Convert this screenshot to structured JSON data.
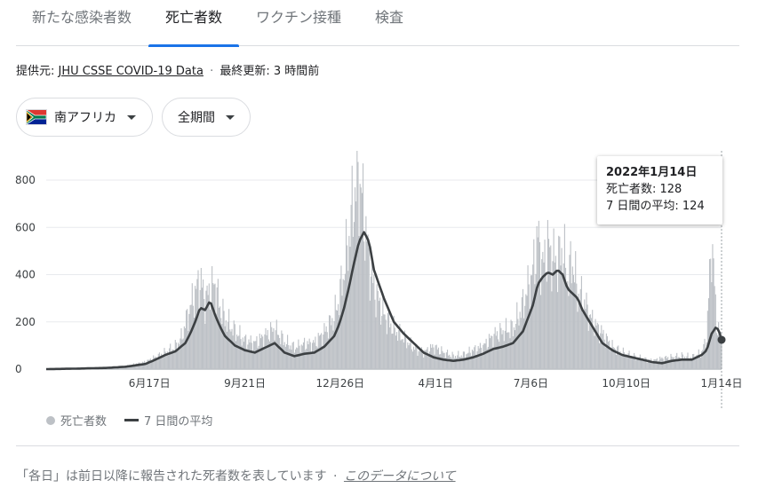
{
  "tabs": [
    "新たな感染者数",
    "死亡者数",
    "ワクチン接種",
    "検査"
  ],
  "active_tab_index": 1,
  "source": {
    "prefix": "提供元:",
    "link": "JHU CSSE COVID-19 Data",
    "separator": "·",
    "updated": "最終更新: 3 時間前"
  },
  "filters": {
    "country": "南アフリカ",
    "period": "全期間"
  },
  "tooltip": {
    "date": "2022年1月14日",
    "deaths": "死亡者数: 128",
    "avg": "7 日間の平均: 124"
  },
  "legend": {
    "deaths": "死亡者数",
    "avg": "7 日間の平均"
  },
  "footnote": {
    "text": "「各日」は前日以降に報告された死者数を表しています",
    "separator": "·",
    "link": "このデータについて"
  },
  "colors": {
    "bar": "#bdc1c6",
    "line": "#3c4043",
    "accent": "#1a73e8"
  },
  "chart_data": {
    "type": "bar",
    "title": "",
    "xlabel": "",
    "ylabel": "",
    "ylim": [
      0,
      850
    ],
    "yticks": [
      0,
      200,
      400,
      600,
      800
    ],
    "x_ticks": [
      "6月17日",
      "9月21日",
      "12月26日",
      "4月1日",
      "7月6日",
      "10月10日",
      "1月14日"
    ],
    "x_ticks_day": [
      104,
      200,
      296,
      392,
      488,
      584,
      680
    ],
    "days_total": 680,
    "series": [
      {
        "name": "死亡者数",
        "style": "bars",
        "key_days": [
          0,
          30,
          60,
          80,
          100,
          110,
          120,
          130,
          136,
          140,
          145,
          150,
          155,
          160,
          165,
          170,
          175,
          180,
          190,
          200,
          210,
          220,
          230,
          240,
          250,
          260,
          270,
          280,
          290,
          295,
          300,
          305,
          310,
          315,
          320,
          325,
          330,
          340,
          350,
          360,
          370,
          380,
          390,
          400,
          410,
          420,
          430,
          440,
          450,
          460,
          470,
          480,
          490,
          495,
          500,
          505,
          510,
          515,
          520,
          525,
          530,
          535,
          540,
          550,
          560,
          570,
          580,
          590,
          600,
          610,
          620,
          630,
          640,
          650,
          660,
          665,
          670,
          675,
          678,
          680
        ],
        "key_values": [
          0,
          2,
          5,
          12,
          30,
          50,
          70,
          95,
          130,
          190,
          260,
          320,
          380,
          290,
          330,
          360,
          260,
          210,
          160,
          120,
          110,
          140,
          170,
          115,
          90,
          105,
          110,
          155,
          220,
          300,
          420,
          560,
          730,
          820,
          650,
          460,
          340,
          230,
          170,
          130,
          90,
          70,
          95,
          70,
          55,
          60,
          80,
          95,
          140,
          160,
          170,
          270,
          410,
          560,
          430,
          520,
          470,
          450,
          510,
          380,
          460,
          320,
          300,
          200,
          150,
          95,
          70,
          55,
          45,
          35,
          45,
          50,
          55,
          50,
          70,
          130,
          560,
          200,
          140,
          128
        ]
      },
      {
        "name": "7 日間の平均",
        "style": "line",
        "key_days": [
          0,
          30,
          60,
          80,
          100,
          110,
          120,
          130,
          140,
          145,
          150,
          155,
          160,
          165,
          170,
          175,
          180,
          190,
          200,
          210,
          220,
          230,
          240,
          250,
          260,
          270,
          280,
          290,
          295,
          300,
          305,
          310,
          315,
          320,
          325,
          330,
          340,
          350,
          360,
          370,
          380,
          390,
          400,
          410,
          420,
          430,
          440,
          450,
          460,
          470,
          480,
          490,
          495,
          500,
          505,
          510,
          515,
          520,
          525,
          530,
          535,
          540,
          550,
          560,
          570,
          580,
          590,
          600,
          610,
          620,
          630,
          640,
          650,
          660,
          665,
          670,
          674,
          677,
          680
        ],
        "key_values": [
          0,
          2,
          5,
          10,
          22,
          40,
          60,
          75,
          110,
          150,
          200,
          260,
          250,
          290,
          230,
          180,
          140,
          100,
          80,
          70,
          90,
          110,
          70,
          55,
          65,
          70,
          95,
          140,
          190,
          260,
          350,
          450,
          540,
          580,
          540,
          420,
          300,
          200,
          150,
          110,
          70,
          50,
          40,
          35,
          40,
          50,
          65,
          85,
          95,
          110,
          160,
          270,
          360,
          390,
          410,
          400,
          420,
          400,
          340,
          320,
          300,
          250,
          180,
          110,
          80,
          60,
          50,
          40,
          30,
          25,
          35,
          40,
          40,
          60,
          80,
          150,
          175,
          168,
          124
        ]
      }
    ],
    "highlight": {
      "day": 680,
      "value": 124,
      "label": "2022年1月14日"
    },
    "grid": true,
    "legend_position": "bottom-left"
  }
}
